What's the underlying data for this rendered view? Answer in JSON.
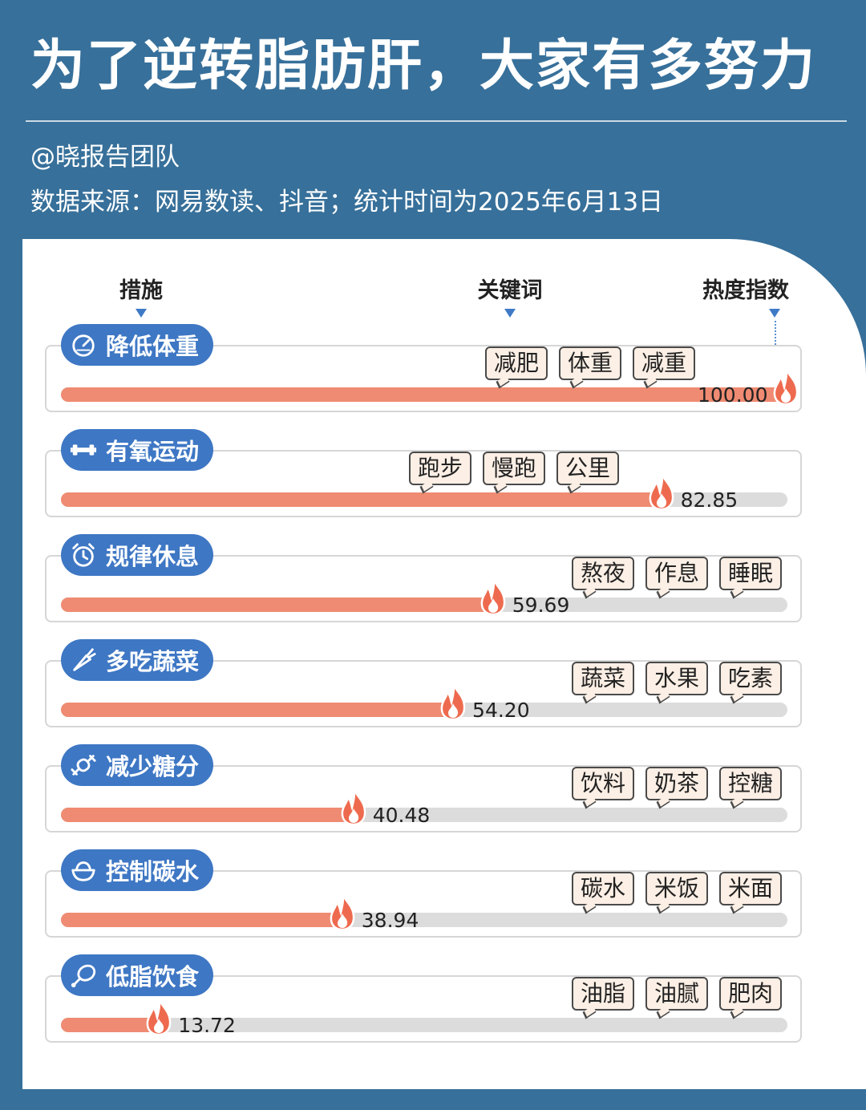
{
  "title": "为了逆转脂肪肝，大家有多努力",
  "author": "@晓报告团队",
  "source": "数据来源：网易数读、抖音；统计时间为2025年6月13日",
  "columns": {
    "measure": "措施",
    "keywords": "关键词",
    "heat": "热度指数"
  },
  "colors": {
    "background": "#37709a",
    "pill": "#3e77c4",
    "bar": "#ef8b72",
    "track": "#dcdcdc",
    "tag_fill": "#fcefe5",
    "flame": "#ee6a4e"
  },
  "chart_data": {
    "type": "bar",
    "orientation": "horizontal",
    "categories": [
      "降低体重",
      "有氧运动",
      "规律休息",
      "多吃蔬菜",
      "减少糖分",
      "控制碳水",
      "低脂饮食"
    ],
    "values": [
      100.0,
      82.85,
      59.69,
      54.2,
      40.48,
      38.94,
      13.72
    ],
    "value_labels": [
      "100.00",
      "82.85",
      "59.69",
      "54.20",
      "40.48",
      "38.94",
      "13.72"
    ],
    "xlim": [
      0,
      100
    ],
    "icons": [
      "speedometer-icon",
      "dumbbell-icon",
      "alarm-clock-icon",
      "carrot-icon",
      "candy-icon",
      "rice-bowl-icon",
      "drumstick-icon"
    ],
    "keywords": [
      [
        "减肥",
        "体重",
        "减重"
      ],
      [
        "跑步",
        "慢跑",
        "公里"
      ],
      [
        "熬夜",
        "作息",
        "睡眠"
      ],
      [
        "蔬菜",
        "水果",
        "吃素"
      ],
      [
        "饮料",
        "奶茶",
        "控糖"
      ],
      [
        "碳水",
        "米饭",
        "米面"
      ],
      [
        "油脂",
        "油腻",
        "肥肉"
      ]
    ]
  }
}
